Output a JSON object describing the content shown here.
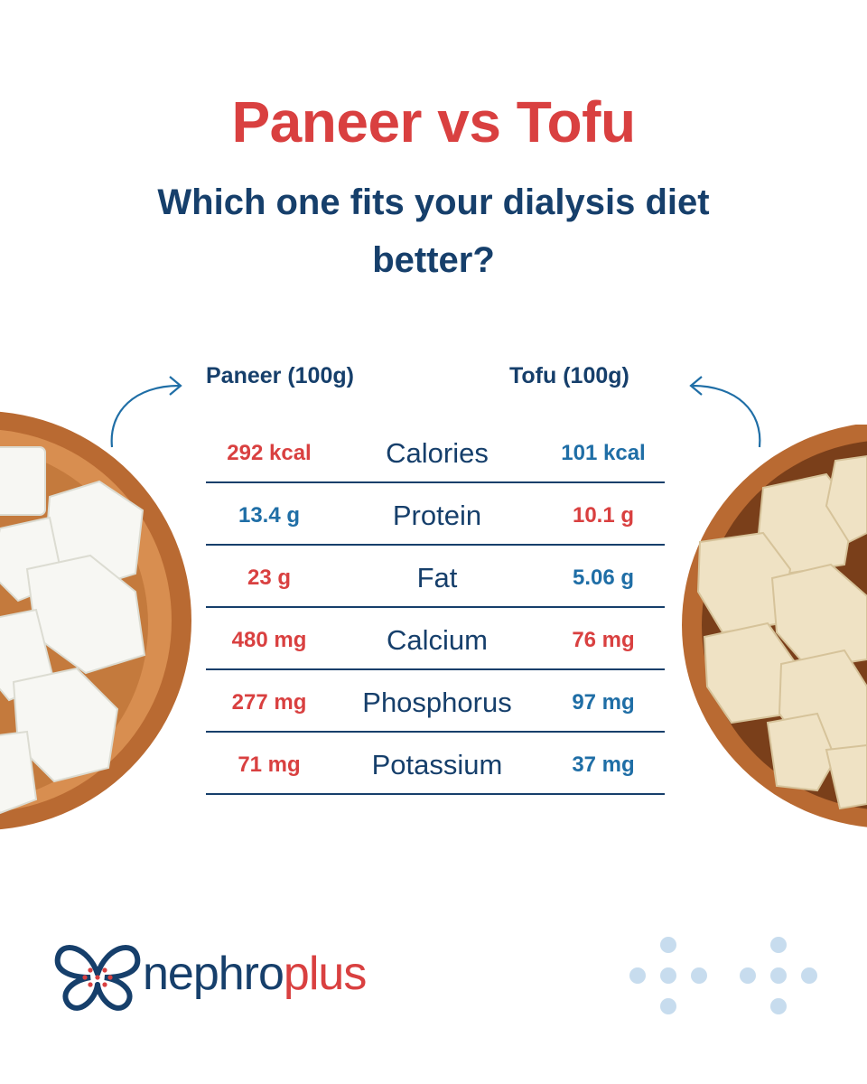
{
  "header": {
    "title": "Paneer vs Tofu",
    "subtitle": "Which one fits your dialysis diet better?"
  },
  "columns": {
    "left": "Paneer (100g)",
    "right": "Tofu (100g)"
  },
  "rows": [
    {
      "nutrient": "Calories",
      "paneer": "292 kcal",
      "tofu": "101 kcal"
    },
    {
      "nutrient": "Protein",
      "paneer": "13.4 g",
      "tofu": "10.1 g"
    },
    {
      "nutrient": "Fat",
      "paneer": "23 g",
      "tofu": "5.06 g"
    },
    {
      "nutrient": "Calcium",
      "paneer": "480 mg",
      "tofu": "76 mg"
    },
    {
      "nutrient": "Phosphorus",
      "paneer": "277 mg",
      "tofu": "97 mg"
    },
    {
      "nutrient": "Potassium",
      "paneer": "71 mg",
      "tofu": "37 mg"
    }
  ],
  "brand": {
    "name_part1": "nephro",
    "name_part2": "plus"
  },
  "colors": {
    "red": "#d94040",
    "navy": "#163f6b",
    "blue": "#1f6ea6",
    "dots": "#c7dcee"
  },
  "icons": [
    "curved-arrow-icon",
    "butterfly-logo-icon",
    "plus-dots-icon"
  ]
}
